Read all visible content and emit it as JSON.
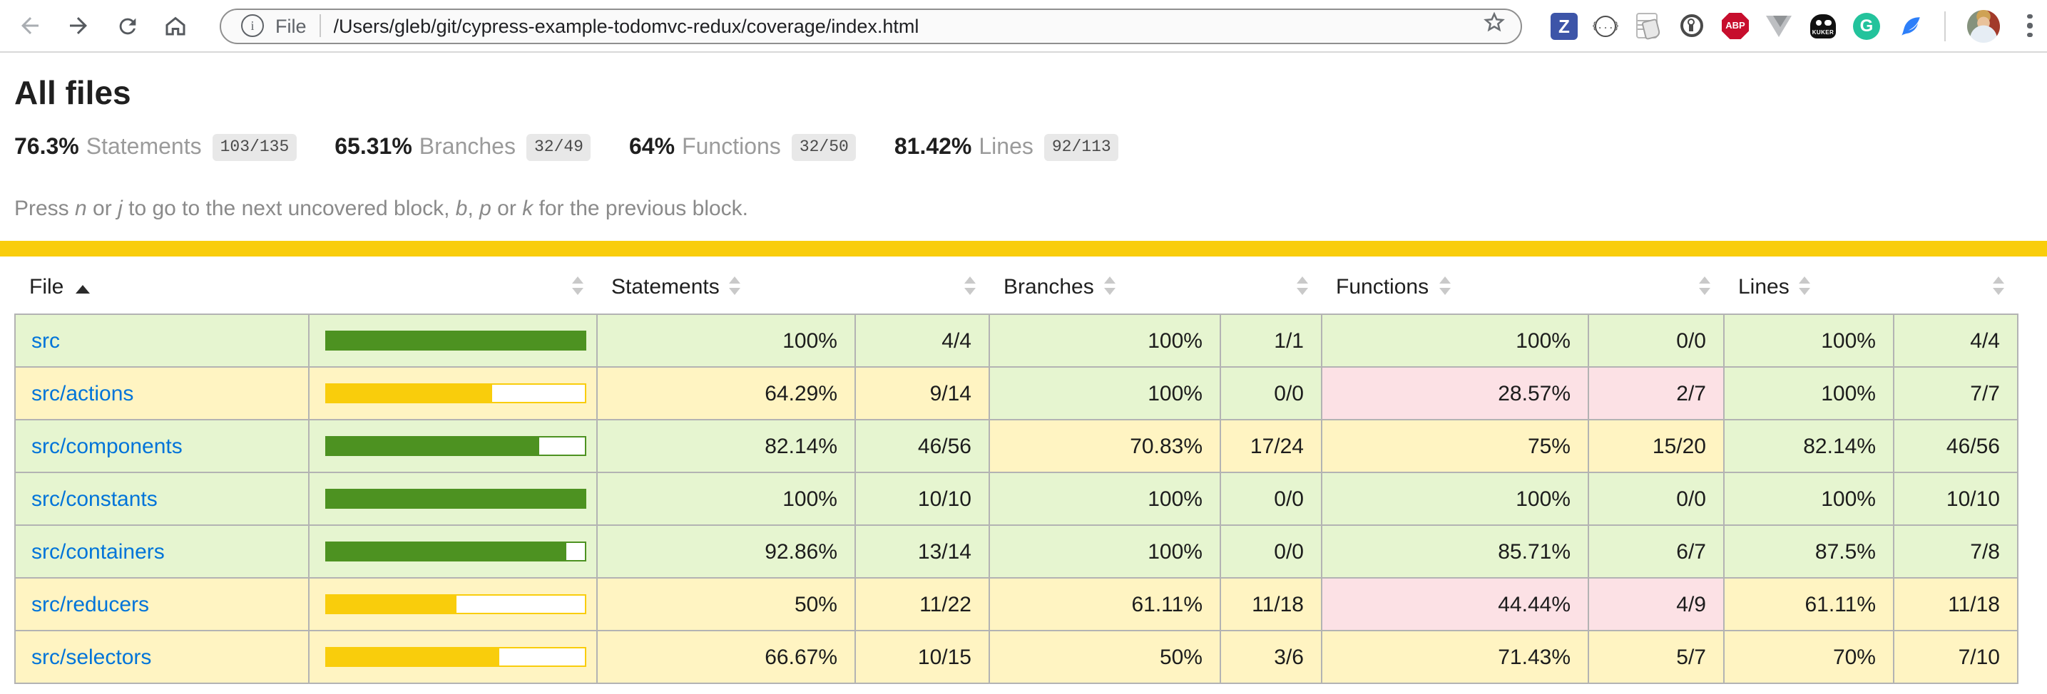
{
  "browser": {
    "url": {
      "scheme_label": "File",
      "path": "/Users/gleb/git/cypress-example-todomvc-redux/coverage/index.html"
    },
    "extensions": {
      "zenhub_label": "Z",
      "json_viewer_label": "{...}",
      "adblock_label": "ABP",
      "kuker_label": "KUKER",
      "grammarly_label": "G"
    }
  },
  "page": {
    "title": "All files",
    "summary": [
      {
        "pct": "76.3%",
        "label": "Statements",
        "fraction": "103/135"
      },
      {
        "pct": "65.31%",
        "label": "Branches",
        "fraction": "32/49"
      },
      {
        "pct": "64%",
        "label": "Functions",
        "fraction": "32/50"
      },
      {
        "pct": "81.42%",
        "label": "Lines",
        "fraction": "92/113"
      }
    ],
    "hint": {
      "p1": "Press ",
      "k1": "n",
      "p2": " or ",
      "k2": "j",
      "p3": " to go to the next uncovered block, ",
      "k3": "b",
      "p4": ", ",
      "k4": "p",
      "p5": " or ",
      "k5": "k",
      "p6": " for the previous block."
    }
  },
  "colors": {
    "high_bg": "#e6f5d0",
    "medium_bg": "#fff4c2",
    "low_bg": "#fce1e5",
    "bar_green": "#4d9221",
    "bar_yellow": "#f9cd0c",
    "status_line": "#f9cd0c",
    "link_blue": "#0074d9"
  },
  "table": {
    "headers": {
      "file": "File",
      "statements": "Statements",
      "branches": "Branches",
      "functions": "Functions",
      "lines": "Lines"
    },
    "sorted_by": "file ascending",
    "rows": [
      {
        "file": "src",
        "level": "high",
        "bar_pct": 100,
        "statements": {
          "pct": "100%",
          "frac": "4/4",
          "level": "high"
        },
        "branches": {
          "pct": "100%",
          "frac": "1/1",
          "level": "high"
        },
        "functions": {
          "pct": "100%",
          "frac": "0/0",
          "level": "high"
        },
        "lines": {
          "pct": "100%",
          "frac": "4/4",
          "level": "high"
        }
      },
      {
        "file": "src/actions",
        "level": "medium",
        "bar_pct": 64.29,
        "statements": {
          "pct": "64.29%",
          "frac": "9/14",
          "level": "medium"
        },
        "branches": {
          "pct": "100%",
          "frac": "0/0",
          "level": "high"
        },
        "functions": {
          "pct": "28.57%",
          "frac": "2/7",
          "level": "low"
        },
        "lines": {
          "pct": "100%",
          "frac": "7/7",
          "level": "high"
        }
      },
      {
        "file": "src/components",
        "level": "high",
        "bar_pct": 82.14,
        "statements": {
          "pct": "82.14%",
          "frac": "46/56",
          "level": "high"
        },
        "branches": {
          "pct": "70.83%",
          "frac": "17/24",
          "level": "medium"
        },
        "functions": {
          "pct": "75%",
          "frac": "15/20",
          "level": "medium"
        },
        "lines": {
          "pct": "82.14%",
          "frac": "46/56",
          "level": "high"
        }
      },
      {
        "file": "src/constants",
        "level": "high",
        "bar_pct": 100,
        "statements": {
          "pct": "100%",
          "frac": "10/10",
          "level": "high"
        },
        "branches": {
          "pct": "100%",
          "frac": "0/0",
          "level": "high"
        },
        "functions": {
          "pct": "100%",
          "frac": "0/0",
          "level": "high"
        },
        "lines": {
          "pct": "100%",
          "frac": "10/10",
          "level": "high"
        }
      },
      {
        "file": "src/containers",
        "level": "high",
        "bar_pct": 92.86,
        "statements": {
          "pct": "92.86%",
          "frac": "13/14",
          "level": "high"
        },
        "branches": {
          "pct": "100%",
          "frac": "0/0",
          "level": "high"
        },
        "functions": {
          "pct": "85.71%",
          "frac": "6/7",
          "level": "high"
        },
        "lines": {
          "pct": "87.5%",
          "frac": "7/8",
          "level": "high"
        }
      },
      {
        "file": "src/reducers",
        "level": "medium",
        "bar_pct": 50,
        "statements": {
          "pct": "50%",
          "frac": "11/22",
          "level": "medium"
        },
        "branches": {
          "pct": "61.11%",
          "frac": "11/18",
          "level": "medium"
        },
        "functions": {
          "pct": "44.44%",
          "frac": "4/9",
          "level": "low"
        },
        "lines": {
          "pct": "61.11%",
          "frac": "11/18",
          "level": "medium"
        }
      },
      {
        "file": "src/selectors",
        "level": "medium",
        "bar_pct": 66.67,
        "statements": {
          "pct": "66.67%",
          "frac": "10/15",
          "level": "medium"
        },
        "branches": {
          "pct": "50%",
          "frac": "3/6",
          "level": "medium"
        },
        "functions": {
          "pct": "71.43%",
          "frac": "5/7",
          "level": "medium"
        },
        "lines": {
          "pct": "70%",
          "frac": "7/10",
          "level": "medium"
        }
      }
    ]
  }
}
